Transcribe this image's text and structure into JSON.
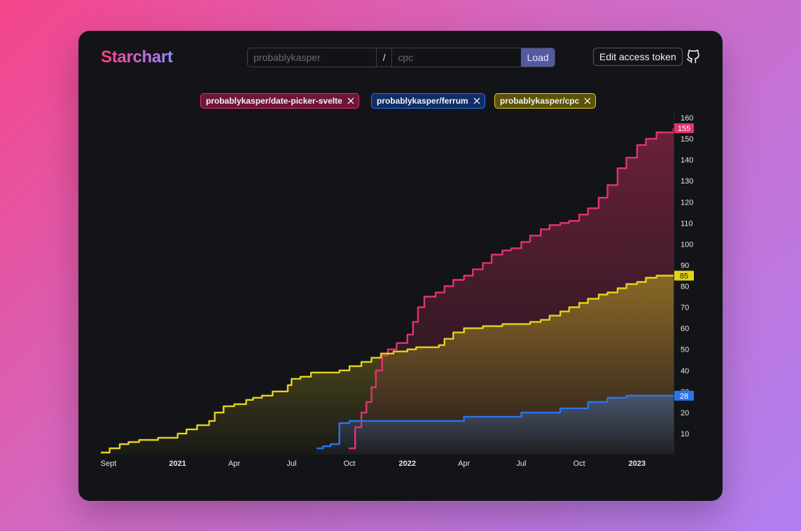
{
  "app": {
    "title": "Starchart",
    "owner_placeholder": "probablykasper",
    "slash": "/",
    "name_placeholder": "cpc",
    "load_label": "Load",
    "token_label": "Edit access token",
    "github_icon": "github-icon"
  },
  "tags": [
    {
      "label": "probablykasper/date-picker-svelte",
      "color": "#e3336b"
    },
    {
      "label": "probablykasper/ferrum",
      "color": "#2a73ef"
    },
    {
      "label": "probablykasper/cpc",
      "color": "#e5d21d"
    }
  ],
  "chart_data": {
    "type": "line",
    "title": "",
    "xlabel": "",
    "ylabel": "",
    "x_range": [
      "2020-09-01",
      "2023-02-28"
    ],
    "ylim": [
      0,
      160
    ],
    "y_ticks": [
      10,
      20,
      30,
      40,
      50,
      60,
      70,
      80,
      90,
      100,
      110,
      120,
      130,
      140,
      150,
      160
    ],
    "x_ticks": [
      {
        "label": "Sept",
        "date": "2020-09-01",
        "bold": false
      },
      {
        "label": "2021",
        "date": "2021-01-01",
        "bold": true
      },
      {
        "label": "Apr",
        "date": "2021-04-01",
        "bold": false
      },
      {
        "label": "Jul",
        "date": "2021-07-01",
        "bold": false
      },
      {
        "label": "Oct",
        "date": "2021-10-01",
        "bold": false
      },
      {
        "label": "2022",
        "date": "2022-01-01",
        "bold": true
      },
      {
        "label": "Apr",
        "date": "2022-04-01",
        "bold": false
      },
      {
        "label": "Jul",
        "date": "2022-07-01",
        "bold": false
      },
      {
        "label": "Oct",
        "date": "2022-10-01",
        "bold": false
      },
      {
        "label": "2023",
        "date": "2023-01-01",
        "bold": true
      }
    ],
    "grid": false,
    "series": [
      {
        "color": "#e3336b",
        "end_label": "155",
        "points": [
          [
            "2021-09-30",
            3
          ],
          [
            "2021-10-10",
            13
          ],
          [
            "2021-10-20",
            20
          ],
          [
            "2021-10-28",
            25
          ],
          [
            "2021-11-05",
            32
          ],
          [
            "2021-11-12",
            40
          ],
          [
            "2021-11-22",
            47
          ],
          [
            "2021-12-01",
            50
          ],
          [
            "2021-12-15",
            53
          ],
          [
            "2022-01-01",
            57
          ],
          [
            "2022-01-10",
            63
          ],
          [
            "2022-01-18",
            70
          ],
          [
            "2022-01-28",
            75
          ],
          [
            "2022-02-15",
            77
          ],
          [
            "2022-03-01",
            80
          ],
          [
            "2022-03-15",
            83
          ],
          [
            "2022-04-01",
            85
          ],
          [
            "2022-04-15",
            88
          ],
          [
            "2022-05-01",
            91
          ],
          [
            "2022-05-15",
            95
          ],
          [
            "2022-06-01",
            97
          ],
          [
            "2022-06-15",
            98
          ],
          [
            "2022-07-01",
            101
          ],
          [
            "2022-07-15",
            104
          ],
          [
            "2022-08-01",
            107
          ],
          [
            "2022-08-15",
            109
          ],
          [
            "2022-09-01",
            110
          ],
          [
            "2022-09-15",
            111
          ],
          [
            "2022-10-01",
            114
          ],
          [
            "2022-10-15",
            117
          ],
          [
            "2022-11-01",
            122
          ],
          [
            "2022-11-15",
            128
          ],
          [
            "2022-12-01",
            136
          ],
          [
            "2022-12-15",
            141
          ],
          [
            "2023-01-01",
            147
          ],
          [
            "2023-01-15",
            150
          ],
          [
            "2023-02-01",
            153
          ],
          [
            "2023-02-28",
            155
          ]
        ]
      },
      {
        "color": "#2a73ef",
        "end_label": "28",
        "points": [
          [
            "2021-08-10",
            3
          ],
          [
            "2021-08-20",
            4
          ],
          [
            "2021-09-01",
            5
          ],
          [
            "2021-09-15",
            15
          ],
          [
            "2021-10-01",
            16
          ],
          [
            "2021-11-01",
            16
          ],
          [
            "2022-01-01",
            16
          ],
          [
            "2022-04-01",
            18
          ],
          [
            "2022-07-01",
            20
          ],
          [
            "2022-09-01",
            22
          ],
          [
            "2022-10-01",
            22
          ],
          [
            "2022-10-15",
            25
          ],
          [
            "2022-11-15",
            27
          ],
          [
            "2022-12-15",
            28
          ],
          [
            "2023-02-28",
            28
          ]
        ]
      },
      {
        "color": "#e5d21d",
        "end_label": "85",
        "points": [
          [
            "2020-09-01",
            1
          ],
          [
            "2020-09-15",
            3
          ],
          [
            "2020-10-01",
            5
          ],
          [
            "2020-10-15",
            6
          ],
          [
            "2020-11-01",
            7
          ],
          [
            "2020-12-01",
            8
          ],
          [
            "2021-01-01",
            10
          ],
          [
            "2021-01-15",
            12
          ],
          [
            "2021-02-01",
            14
          ],
          [
            "2021-02-20",
            16
          ],
          [
            "2021-03-01",
            20
          ],
          [
            "2021-03-15",
            23
          ],
          [
            "2021-04-01",
            24
          ],
          [
            "2021-04-20",
            26
          ],
          [
            "2021-05-01",
            27
          ],
          [
            "2021-05-15",
            28
          ],
          [
            "2021-06-01",
            30
          ],
          [
            "2021-06-25",
            33
          ],
          [
            "2021-07-01",
            36
          ],
          [
            "2021-07-15",
            37
          ],
          [
            "2021-08-01",
            39
          ],
          [
            "2021-08-15",
            39
          ],
          [
            "2021-09-15",
            40
          ],
          [
            "2021-10-01",
            42
          ],
          [
            "2021-10-20",
            44
          ],
          [
            "2021-11-05",
            46
          ],
          [
            "2021-11-20",
            48
          ],
          [
            "2021-12-10",
            49
          ],
          [
            "2022-01-01",
            50
          ],
          [
            "2022-01-15",
            51
          ],
          [
            "2022-02-01",
            51
          ],
          [
            "2022-02-20",
            52
          ],
          [
            "2022-03-01",
            55
          ],
          [
            "2022-03-15",
            58
          ],
          [
            "2022-04-01",
            60
          ],
          [
            "2022-04-15",
            60
          ],
          [
            "2022-05-01",
            61
          ],
          [
            "2022-06-01",
            62
          ],
          [
            "2022-07-01",
            62
          ],
          [
            "2022-07-15",
            63
          ],
          [
            "2022-08-01",
            64
          ],
          [
            "2022-08-15",
            66
          ],
          [
            "2022-09-01",
            68
          ],
          [
            "2022-09-15",
            70
          ],
          [
            "2022-10-01",
            72
          ],
          [
            "2022-10-15",
            74
          ],
          [
            "2022-11-01",
            76
          ],
          [
            "2022-11-15",
            77
          ],
          [
            "2022-12-01",
            79
          ],
          [
            "2022-12-15",
            81
          ],
          [
            "2023-01-01",
            82
          ],
          [
            "2023-01-15",
            84
          ],
          [
            "2023-02-01",
            85
          ],
          [
            "2023-02-28",
            85
          ]
        ]
      }
    ]
  }
}
